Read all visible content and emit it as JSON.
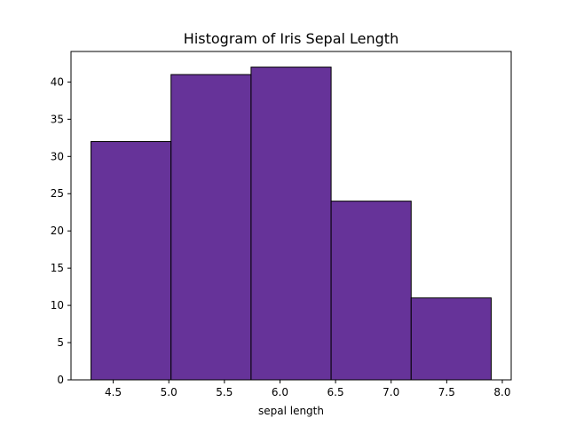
{
  "chart_data": {
    "type": "bar",
    "title": "Histogram of Iris Sepal Length",
    "xlabel": "sepal length",
    "ylabel": "",
    "bins": [
      {
        "start": 4.3,
        "end": 5.02,
        "count": 32
      },
      {
        "start": 5.02,
        "end": 5.74,
        "count": 41
      },
      {
        "start": 5.74,
        "end": 6.46,
        "count": 42
      },
      {
        "start": 6.46,
        "end": 7.18,
        "count": 24
      },
      {
        "start": 7.18,
        "end": 7.9,
        "count": 11
      }
    ],
    "xlim": [
      4.12,
      8.08
    ],
    "ylim": [
      0,
      44.1
    ],
    "xticks": [
      4.5,
      5.0,
      5.5,
      6.0,
      6.5,
      7.0,
      7.5,
      8.0
    ],
    "xtick_labels": [
      "4.5",
      "5.0",
      "5.5",
      "6.0",
      "6.5",
      "7.0",
      "7.5",
      "8.0"
    ],
    "yticks": [
      0,
      5,
      10,
      15,
      20,
      25,
      30,
      35,
      40
    ],
    "ytick_labels": [
      "0",
      "5",
      "10",
      "15",
      "20",
      "25",
      "30",
      "35",
      "40"
    ],
    "bar_color": "#663399",
    "edge_color": "#000000",
    "grid": false
  }
}
